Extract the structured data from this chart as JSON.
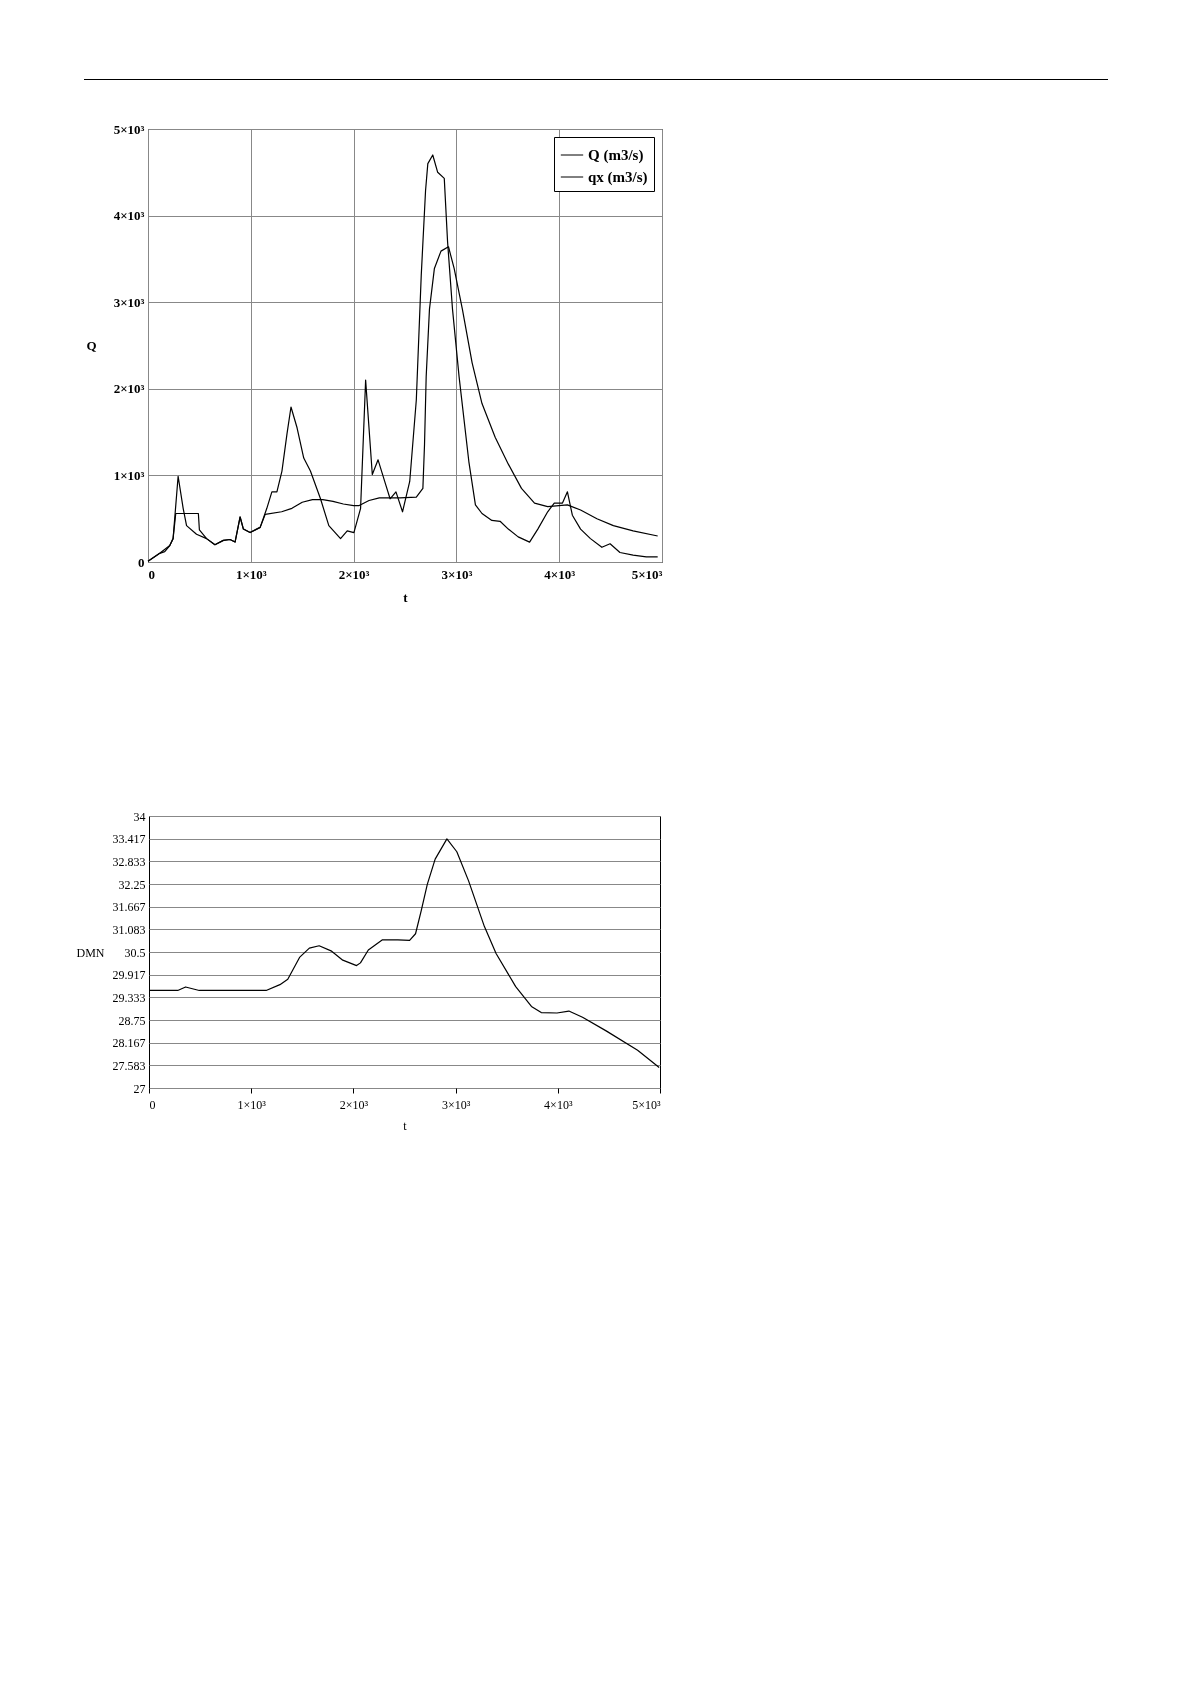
{
  "chart_data": [
    {
      "type": "line",
      "xlabel": "t",
      "ylabel": "Q",
      "xlim": [
        0,
        5000
      ],
      "ylim": [
        0,
        5000
      ],
      "xticks": [
        0,
        {
          "value": 1000,
          "label": "1×10³"
        },
        {
          "value": 2000,
          "label": "2×10³"
        },
        {
          "value": 3000,
          "label": "3×10³"
        },
        {
          "value": 4000,
          "label": "4×10³"
        },
        {
          "value": 5000,
          "label": "5×10³"
        }
      ],
      "yticks": [
        0,
        {
          "value": 1000,
          "label": "1×10³"
        },
        {
          "value": 2000,
          "label": "2×10³"
        },
        {
          "value": 3000,
          "label": "3×10³"
        },
        {
          "value": 4000,
          "label": "4×10³"
        },
        {
          "value": 5000,
          "label": "5×10³"
        }
      ],
      "grid": true,
      "legend": "top right",
      "marker": "none",
      "line_style": "solid",
      "series": [
        {
          "name": "Q (m3/s)",
          "color": "#000000",
          "x": [
            0,
            114,
            163,
            212,
            244,
            293,
            342,
            375,
            472,
            570,
            651,
            733,
            798,
            847,
            896,
            928,
            993,
            1091,
            1156,
            1205,
            1254,
            1303,
            1352,
            1391,
            1450,
            1515,
            1580,
            1678,
            1759,
            1873,
            1938,
            2003,
            2068,
            2117,
            2182,
            2238,
            2313,
            2355,
            2412,
            2476,
            2546,
            2610,
            2658,
            2700,
            2722,
            2770,
            2818,
            2882,
            2914,
            2962,
            3026,
            3121,
            3185,
            3249,
            3345,
            3425,
            3505,
            3601,
            3712,
            3792,
            3888,
            3952,
            4032,
            4080,
            4128,
            4208,
            4304,
            4415,
            4495,
            4591,
            4719,
            4847,
            4958
          ],
          "values": [
            10,
            100,
            120,
            190,
            270,
            990,
            620,
            420,
            320,
            270,
            200,
            250,
            260,
            230,
            520,
            380,
            340,
            400,
            620,
            810,
            810,
            1050,
            1480,
            1790,
            1550,
            1200,
            1050,
            730,
            420,
            270,
            360,
            340,
            620,
            2100,
            1010,
            1180,
            890,
            730,
            810,
            580,
            930,
            1870,
            3310,
            4290,
            4600,
            4700,
            4500,
            4430,
            3700,
            2920,
            2140,
            1160,
            660,
            560,
            480,
            470,
            380,
            290,
            230,
            380,
            580,
            680,
            680,
            810,
            540,
            380,
            270,
            170,
            210,
            110,
            80,
            60,
            60
          ]
        },
        {
          "name": "qx (m3/s)",
          "color": "#000000",
          "x": [
            0,
            114,
            212,
            244,
            270,
            490,
            500,
            570,
            651,
            733,
            798,
            847,
            896,
            928,
            993,
            1091,
            1140,
            1300,
            1400,
            1500,
            1600,
            1700,
            1800,
            1900,
            2000,
            2050,
            2150,
            2250,
            2350,
            2450,
            2610,
            2674,
            2690,
            2706,
            2738,
            2786,
            2850,
            2923,
            2978,
            3058,
            3153,
            3249,
            3377,
            3505,
            3633,
            3760,
            3888,
            4080,
            4208,
            4367,
            4527,
            4719,
            4958
          ],
          "values": [
            10,
            100,
            190,
            270,
            560,
            560,
            370,
            270,
            200,
            250,
            260,
            230,
            520,
            380,
            340,
            400,
            550,
            580,
            620,
            690,
            720,
            720,
            700,
            670,
            650,
            650,
            710,
            740,
            740,
            740,
            750,
            850,
            1360,
            2140,
            2920,
            3390,
            3590,
            3640,
            3390,
            2920,
            2300,
            1830,
            1440,
            1130,
            850,
            680,
            640,
            660,
            600,
            500,
            420,
            360,
            300
          ]
        }
      ]
    },
    {
      "type": "line",
      "xlabel": "t",
      "ylabel": "DMN",
      "xlim": [
        0,
        5000
      ],
      "ylim": [
        27,
        34
      ],
      "xticks": [
        0,
        {
          "value": 1000,
          "label": "1×10³"
        },
        {
          "value": 2000,
          "label": "2×10³"
        },
        {
          "value": 3000,
          "label": "3×10³"
        },
        {
          "value": 4000,
          "label": "4×10³"
        },
        {
          "value": 5000,
          "label": "5×10³"
        }
      ],
      "yticks": [
        27,
        27.583,
        28.167,
        28.75,
        29.333,
        29.917,
        30.5,
        31.083,
        31.667,
        32.25,
        32.833,
        33.417,
        34
      ],
      "grid": "y",
      "marker": "none",
      "line_style": "solid",
      "color": "#000000",
      "x": [
        0,
        281,
        358,
        492,
        1146,
        1281,
        1358,
        1473,
        1569,
        1665,
        1781,
        1896,
        2031,
        2069,
        2146,
        2281,
        2435,
        2550,
        2608,
        2665,
        2723,
        2800,
        2915,
        3012,
        3127,
        3281,
        3396,
        3588,
        3742,
        3838,
        3992,
        4108,
        4242,
        4473,
        4781,
        4992
      ],
      "values": [
        29.51,
        29.51,
        29.6,
        29.51,
        29.51,
        29.66,
        29.8,
        30.36,
        30.6,
        30.66,
        30.53,
        30.29,
        30.15,
        30.22,
        30.55,
        30.81,
        30.81,
        30.8,
        30.97,
        31.58,
        32.24,
        32.89,
        33.41,
        33.08,
        32.33,
        31.16,
        30.46,
        29.61,
        29.1,
        28.94,
        28.93,
        28.98,
        28.82,
        28.47,
        27.97,
        27.53
      ]
    }
  ]
}
